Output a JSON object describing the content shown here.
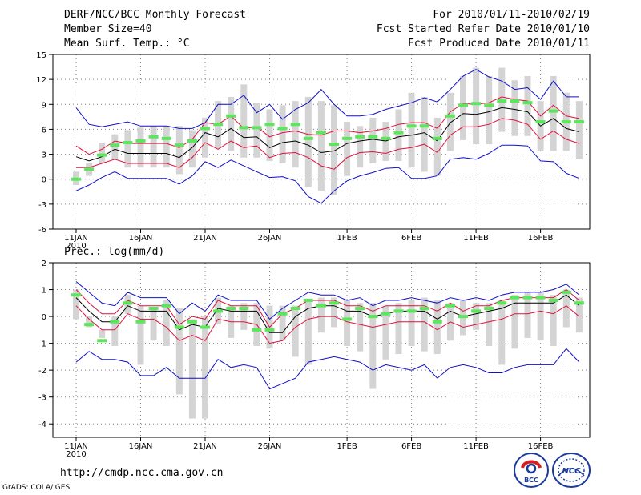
{
  "header": {
    "title": "DERF/NCC/BCC Monthly Forecast",
    "member_size": "Member Size=40",
    "variable": "Mean Surf. Temp.: °C",
    "period": "For 2010/01/11-2010/02/19",
    "started": "Fcst Started Refer Date 2010/01/10",
    "produced": "Fcst Produced Date 2010/01/11"
  },
  "footer": {
    "url": "http://cmdp.ncc.cma.gov.cn",
    "credit": "GrADS: COLA/IGES",
    "logo_left_text": "BCC",
    "logo_right_text": "NCC"
  },
  "colors": {
    "box": "#d4d4d4",
    "median": "#5ce65c",
    "mean": "#000000",
    "std": "#e0103c",
    "extreme": "#1010c8"
  },
  "chart_data": [
    {
      "type": "box",
      "title": "Mean Surf. Temp.: °C",
      "xlabel": "",
      "ylabel": "°C",
      "days": 40,
      "x_ticks": [
        {
          "day": 0,
          "label": "11JAN"
        },
        {
          "day": 5,
          "label": "16JAN"
        },
        {
          "day": 10,
          "label": "21JAN"
        },
        {
          "day": 15,
          "label": "26JAN"
        },
        {
          "day": 21,
          "label": "1FEB"
        },
        {
          "day": 26,
          "label": "6FEB"
        },
        {
          "day": 31,
          "label": "11FEB"
        },
        {
          "day": 36,
          "label": "16FEB"
        }
      ],
      "year_label": "2010",
      "ylim": [
        -6,
        15
      ],
      "yticks": [
        -6,
        -3,
        0,
        3,
        6,
        9,
        12,
        15
      ],
      "ytick_labels": [
        "-6",
        "-3",
        "0",
        "3",
        "6",
        "9",
        "12",
        "15"
      ],
      "box_low": [
        -0.7,
        0.4,
        1.9,
        2.4,
        1.4,
        1.4,
        1.4,
        1.4,
        0.6,
        1.4,
        2.6,
        3.7,
        3.4,
        2.6,
        2.6,
        2.2,
        1.9,
        1.4,
        -0.9,
        -1.4,
        -1.9,
        0.4,
        1.4,
        1.9,
        2.2,
        2.2,
        1.4,
        0.9,
        0.4,
        3.4,
        4.7,
        4.2,
        4.2,
        5.7,
        5.2,
        5.2,
        3.4,
        3.4,
        3.4,
        2.4
      ],
      "box_high": [
        0.9,
        1.9,
        4.4,
        5.4,
        5.9,
        6.2,
        6.4,
        6.4,
        6.4,
        5.9,
        7.4,
        9.4,
        9.9,
        11.4,
        9.2,
        8.4,
        8.9,
        9.4,
        9.9,
        9.4,
        8.9,
        6.9,
        6.4,
        7.4,
        6.9,
        8.4,
        10.4,
        9.9,
        7.4,
        10.4,
        12.4,
        13.4,
        12.4,
        13.4,
        11.9,
        12.4,
        9.4,
        12.4,
        10.4,
        9.4
      ],
      "median": [
        0.0,
        1.2,
        2.9,
        4.1,
        4.4,
        4.6,
        5.1,
        4.9,
        4.1,
        4.6,
        6.1,
        6.6,
        7.6,
        6.2,
        6.2,
        6.6,
        6.1,
        6.6,
        4.9,
        5.6,
        4.2,
        4.9,
        5.1,
        5.1,
        4.9,
        5.6,
        6.4,
        6.4,
        4.9,
        7.6,
        8.9,
        9.1,
        8.9,
        9.4,
        9.4,
        9.2,
        6.9,
        8.2,
        6.9,
        6.9
      ],
      "series": [
        {
          "name": "maximum",
          "role": "extreme",
          "values": [
            8.6,
            6.6,
            6.3,
            6.6,
            6.9,
            6.4,
            6.4,
            6.4,
            6.1,
            6.1,
            6.8,
            9.0,
            9.0,
            10.1,
            8.0,
            9.0,
            7.2,
            8.4,
            9.2,
            10.8,
            9.0,
            7.6,
            7.6,
            7.8,
            8.4,
            8.8,
            9.2,
            9.8,
            9.3,
            10.8,
            12.4,
            13.2,
            12.3,
            11.8,
            10.8,
            11.0,
            9.6,
            11.8,
            9.9,
            9.9
          ]
        },
        {
          "name": "mean + 1 sd",
          "role": "std",
          "values": [
            4.0,
            3.0,
            3.6,
            4.6,
            4.3,
            4.3,
            4.3,
            4.3,
            3.8,
            4.8,
            6.8,
            6.6,
            7.6,
            6.1,
            6.3,
            5.1,
            5.6,
            5.8,
            5.4,
            5.3,
            5.8,
            5.8,
            5.6,
            5.8,
            6.1,
            6.6,
            6.8,
            6.8,
            6.1,
            8.1,
            9.1,
            9.0,
            9.2,
            9.9,
            9.6,
            9.4,
            7.6,
            8.9,
            7.6,
            7.3
          ]
        },
        {
          "name": "mean",
          "role": "mean",
          "values": [
            2.7,
            2.2,
            2.7,
            3.6,
            3.1,
            3.1,
            3.1,
            3.1,
            2.6,
            3.8,
            5.6,
            5.1,
            6.1,
            5.0,
            5.1,
            3.8,
            4.4,
            4.6,
            4.1,
            3.2,
            3.4,
            4.3,
            4.6,
            4.8,
            4.6,
            5.1,
            5.3,
            5.6,
            4.6,
            6.8,
            7.9,
            7.8,
            8.1,
            8.6,
            8.4,
            8.1,
            6.4,
            7.3,
            6.1,
            5.7
          ]
        },
        {
          "name": "mean - 1 sd",
          "role": "std",
          "values": [
            1.4,
            1.4,
            1.9,
            2.4,
            1.9,
            1.9,
            1.9,
            1.9,
            1.4,
            2.6,
            4.4,
            3.6,
            4.6,
            3.8,
            4.0,
            2.6,
            3.1,
            3.2,
            2.6,
            1.6,
            1.2,
            2.6,
            3.2,
            3.3,
            3.1,
            3.6,
            3.8,
            4.2,
            3.2,
            5.3,
            6.3,
            6.3,
            6.6,
            7.3,
            7.1,
            6.6,
            4.8,
            5.8,
            4.8,
            4.3
          ]
        },
        {
          "name": "minimum",
          "role": "extreme",
          "values": [
            -1.4,
            -0.7,
            0.2,
            0.9,
            0.1,
            0.1,
            0.1,
            0.1,
            -0.6,
            0.4,
            2.1,
            1.4,
            2.3,
            1.6,
            0.9,
            0.2,
            0.3,
            -0.2,
            -2.1,
            -2.9,
            -1.4,
            -0.2,
            0.4,
            0.8,
            1.3,
            1.4,
            0.1,
            0.1,
            0.4,
            2.4,
            2.6,
            2.4,
            3.1,
            4.1,
            4.1,
            4.0,
            2.2,
            2.1,
            0.7,
            0.1
          ]
        }
      ]
    },
    {
      "type": "box",
      "title": "Prec.: log(mm/d)",
      "xlabel": "",
      "ylabel": "log(mm/d)",
      "days": 40,
      "x_ticks": [
        {
          "day": 0,
          "label": "11JAN"
        },
        {
          "day": 5,
          "label": "16JAN"
        },
        {
          "day": 10,
          "label": "21JAN"
        },
        {
          "day": 15,
          "label": "26JAN"
        },
        {
          "day": 21,
          "label": "1FEB"
        },
        {
          "day": 26,
          "label": "6FEB"
        },
        {
          "day": 31,
          "label": "11FEB"
        },
        {
          "day": 36,
          "label": "16FEB"
        }
      ],
      "year_label": "2010",
      "ylim": [
        -4.5,
        2
      ],
      "yticks": [
        -4,
        -3,
        -2,
        -1,
        0,
        1,
        2
      ],
      "ytick_labels": [
        "-4",
        "-3",
        "-2",
        "-1",
        "0",
        "1",
        "2"
      ],
      "box_low": [
        -0.1,
        -0.4,
        -0.8,
        -1.1,
        0.1,
        -1.8,
        -0.9,
        -1.1,
        -2.9,
        -3.8,
        -3.8,
        -0.3,
        -0.8,
        -0.5,
        -1.1,
        -1.2,
        -0.9,
        -1.5,
        -1.8,
        -0.6,
        -0.4,
        -1.1,
        -1.3,
        -2.7,
        -1.6,
        -1.4,
        -1.1,
        -1.3,
        -1.4,
        -0.9,
        -0.7,
        -0.5,
        -1.1,
        -1.8,
        -1.2,
        -0.8,
        -0.9,
        -1.1,
        -0.4,
        -0.6
      ],
      "box_high": [
        1.0,
        0.0,
        -0.5,
        0.0,
        0.8,
        0.4,
        0.3,
        0.6,
        0.3,
        -0.1,
        0.0,
        0.7,
        0.4,
        0.5,
        0.5,
        0.4,
        0.4,
        0.4,
        0.6,
        0.7,
        0.7,
        0.6,
        0.5,
        0.5,
        0.4,
        0.5,
        0.6,
        0.7,
        0.6,
        0.5,
        0.6,
        0.5,
        0.5,
        0.6,
        0.8,
        0.9,
        0.9,
        0.8,
        1.0,
        0.7
      ],
      "median": [
        0.8,
        -0.3,
        -0.9,
        -0.2,
        0.5,
        -0.2,
        0.3,
        0.4,
        -0.4,
        -0.2,
        -0.4,
        0.2,
        0.3,
        0.3,
        -0.5,
        -0.5,
        0.1,
        0.3,
        0.6,
        0.4,
        0.5,
        -0.1,
        0.3,
        0.0,
        0.1,
        0.2,
        0.2,
        0.3,
        -0.2,
        0.4,
        0.0,
        0.2,
        0.3,
        0.5,
        0.7,
        0.7,
        0.7,
        0.6,
        0.9,
        0.5
      ],
      "series": [
        {
          "name": "maximum",
          "role": "extreme",
          "values": [
            1.3,
            0.9,
            0.5,
            0.4,
            0.9,
            0.7,
            0.7,
            0.7,
            0.1,
            0.5,
            0.2,
            0.8,
            0.6,
            0.6,
            0.6,
            -0.1,
            0.3,
            0.6,
            0.9,
            0.8,
            0.8,
            0.6,
            0.7,
            0.4,
            0.6,
            0.6,
            0.7,
            0.6,
            0.5,
            0.7,
            0.6,
            0.7,
            0.6,
            0.8,
            0.9,
            0.9,
            0.9,
            1.0,
            1.2,
            0.8
          ]
        },
        {
          "name": "mean + 1 sd",
          "role": "std",
          "values": [
            1.0,
            0.5,
            0.1,
            0.1,
            0.6,
            0.4,
            0.4,
            0.4,
            -0.3,
            0.0,
            -0.1,
            0.6,
            0.4,
            0.4,
            0.4,
            -0.4,
            0.1,
            0.3,
            0.6,
            0.6,
            0.6,
            0.4,
            0.4,
            0.2,
            0.4,
            0.4,
            0.4,
            0.4,
            0.2,
            0.5,
            0.2,
            0.4,
            0.4,
            0.6,
            0.7,
            0.7,
            0.7,
            0.7,
            1.0,
            0.6
          ]
        },
        {
          "name": "mean",
          "role": "mean",
          "values": [
            0.7,
            0.2,
            -0.2,
            -0.2,
            0.4,
            0.2,
            0.2,
            0.2,
            -0.5,
            -0.3,
            -0.4,
            0.3,
            0.2,
            0.2,
            0.2,
            -0.6,
            -0.6,
            0.0,
            0.3,
            0.4,
            0.4,
            0.2,
            0.2,
            0.0,
            0.1,
            0.2,
            0.2,
            0.2,
            -0.1,
            0.2,
            0.0,
            0.1,
            0.2,
            0.3,
            0.5,
            0.5,
            0.5,
            0.5,
            0.8,
            0.4
          ]
        },
        {
          "name": "mean - 1 sd",
          "role": "std",
          "values": [
            0.4,
            -0.1,
            -0.5,
            -0.5,
            0.1,
            -0.1,
            -0.1,
            -0.4,
            -0.9,
            -0.7,
            -0.9,
            -0.1,
            -0.2,
            -0.2,
            -0.3,
            -1.0,
            -0.9,
            -0.4,
            -0.1,
            0.0,
            0.0,
            -0.2,
            -0.3,
            -0.4,
            -0.3,
            -0.2,
            -0.2,
            -0.2,
            -0.5,
            -0.2,
            -0.4,
            -0.3,
            -0.2,
            -0.1,
            0.1,
            0.1,
            0.2,
            0.1,
            0.4,
            0.0
          ]
        },
        {
          "name": "minimum",
          "role": "extreme",
          "values": [
            -1.7,
            -1.3,
            -1.6,
            -1.6,
            -1.7,
            -2.2,
            -2.2,
            -1.9,
            -2.3,
            -2.3,
            -2.3,
            -1.6,
            -1.9,
            -1.8,
            -1.9,
            -2.7,
            -2.5,
            -2.3,
            -1.7,
            -1.6,
            -1.5,
            -1.6,
            -1.7,
            -2.0,
            -1.8,
            -1.9,
            -2.0,
            -1.8,
            -2.3,
            -1.9,
            -1.8,
            -1.9,
            -2.1,
            -2.1,
            -1.9,
            -1.8,
            -1.8,
            -1.8,
            -1.2,
            -1.7
          ]
        }
      ]
    }
  ]
}
